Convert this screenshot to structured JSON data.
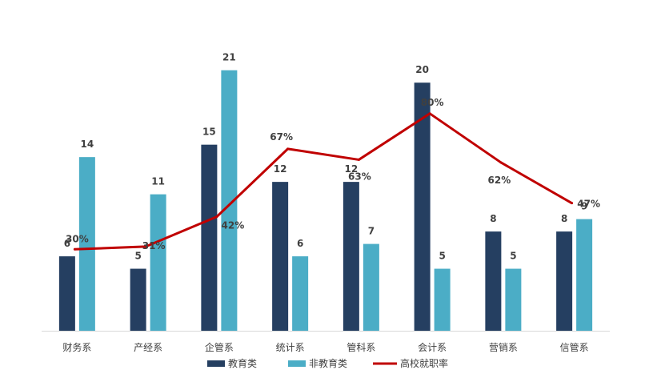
{
  "chart_data": {
    "type": "bar",
    "categories": [
      "财务系",
      "产经系",
      "企管系",
      "统计系",
      "管科系",
      "会计系",
      "营销系",
      "信管系"
    ],
    "series": [
      {
        "name": "教育类",
        "type": "bar",
        "values": [
          6,
          5,
          15,
          12,
          12,
          20,
          8,
          8
        ],
        "labels": [
          "6",
          "5",
          "15",
          "12",
          "12",
          "20",
          "8",
          "8"
        ]
      },
      {
        "name": "非教育类",
        "type": "bar",
        "values": [
          14,
          11,
          21,
          6,
          7,
          5,
          5,
          9
        ],
        "labels": [
          "14",
          "11",
          "21",
          "6",
          "7",
          "5",
          "5",
          "9"
        ]
      },
      {
        "name": "高校就职率",
        "type": "line",
        "values": [
          30,
          31,
          42,
          67,
          63,
          80,
          62,
          47
        ],
        "labels": [
          "30%",
          "31%",
          "42%",
          "67%",
          "63%",
          "80%",
          "62%",
          "47%"
        ]
      }
    ],
    "colors": {
      "edu": "#253f61",
      "nonedu": "#4badc6",
      "rate": "#c00000",
      "axis": "#d9d9d9",
      "text": "#404040"
    },
    "ylim_bars": [
      0,
      23.5
    ],
    "ylim_line": [
      0,
      100
    ],
    "grid": false,
    "legend": "bottom"
  }
}
